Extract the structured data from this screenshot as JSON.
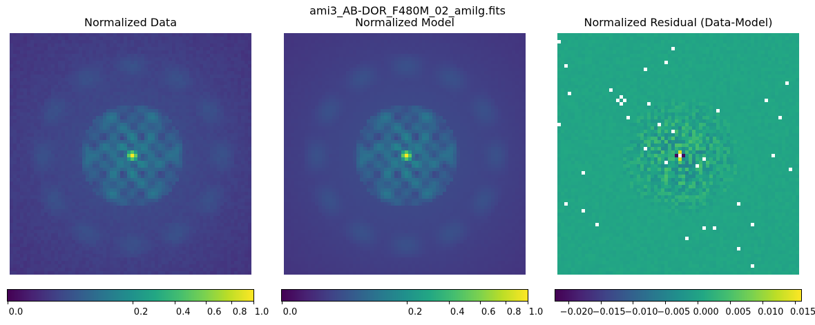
{
  "suptitle": "ami3_AB-DOR_F480M_02_amilg.fits",
  "chart_data": [
    {
      "type": "heatmap",
      "title": "Normalized Data",
      "colormap": "viridis",
      "scale": "power",
      "range": [
        0.0,
        1.0
      ],
      "colorbar_ticks": [
        "0.0",
        "0.2",
        "0.4",
        "0.6",
        "0.8",
        "1.0"
      ],
      "colorbar_tick_values": [
        0.0,
        0.2,
        0.4,
        0.6,
        0.8,
        1.0
      ],
      "grid": false
    },
    {
      "type": "heatmap",
      "title": "Normalized Model",
      "colormap": "viridis",
      "scale": "power",
      "range": [
        0.0,
        1.0
      ],
      "colorbar_ticks": [
        "0.0",
        "0.2",
        "0.4",
        "0.6",
        "0.8",
        "1.0"
      ],
      "colorbar_tick_values": [
        0.0,
        0.2,
        0.4,
        0.6,
        0.8,
        1.0
      ],
      "grid": false
    },
    {
      "type": "heatmap",
      "title": "Normalized Residual (Data-Model)",
      "colormap": "viridis",
      "scale": "linear",
      "range": [
        -0.022,
        0.016
      ],
      "colorbar_ticks": [
        "−0.020",
        "−0.015",
        "−0.010",
        "−0.005",
        "0.000",
        "0.005",
        "0.010",
        "0.015"
      ],
      "colorbar_tick_values": [
        -0.02,
        -0.015,
        -0.01,
        -0.005,
        0.0,
        0.005,
        0.01,
        0.015
      ],
      "grid": false
    }
  ]
}
